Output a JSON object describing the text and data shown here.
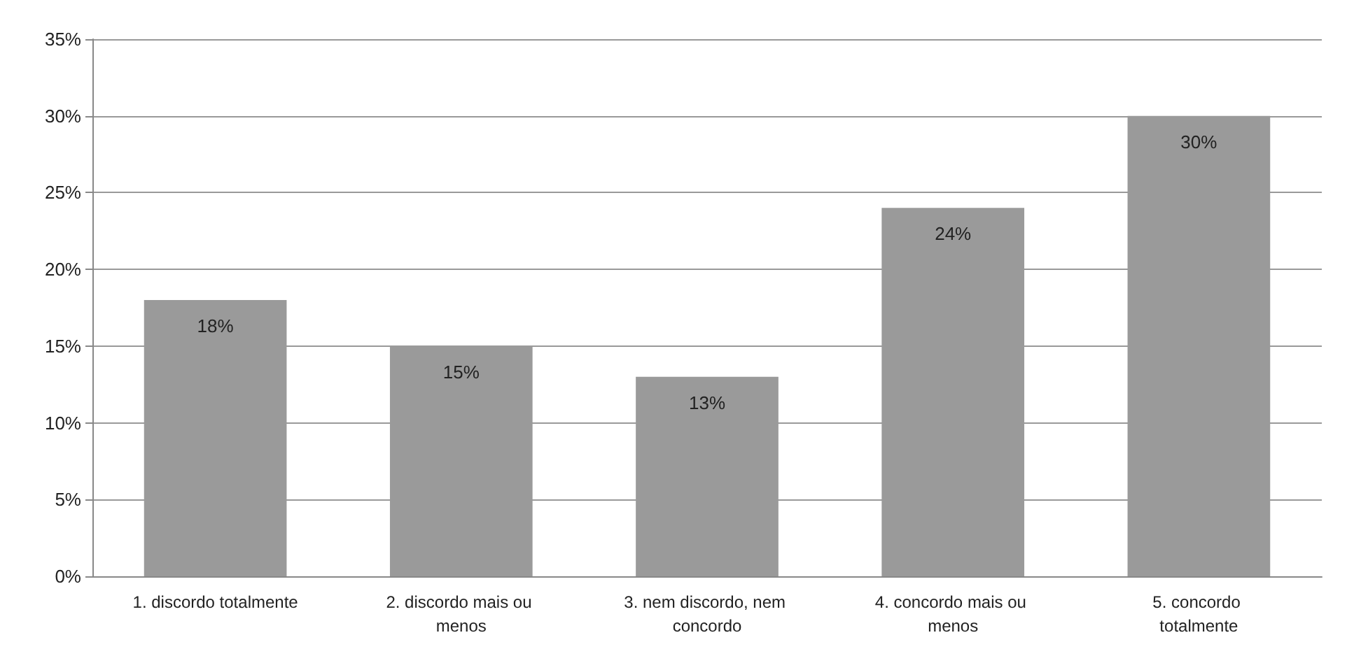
{
  "chart_data": {
    "type": "bar",
    "categories": [
      "1. discordo totalmente",
      "2. discordo mais ou menos",
      "3. nem discordo, nem concordo",
      "4. concordo mais ou menos",
      "5. concordo totalmente"
    ],
    "values": [
      18,
      15,
      13,
      24,
      30
    ],
    "color": "#9a9a9a",
    "value_labels": [
      "18%",
      "15%",
      "13%",
      "24%",
      "30%"
    ],
    "ylim": [
      0,
      35
    ],
    "yticks": [
      {
        "value": 0,
        "label": "0%"
      },
      {
        "value": 5,
        "label": "5%"
      },
      {
        "value": 10,
        "label": "10%"
      },
      {
        "value": 15,
        "label": "15%"
      },
      {
        "value": 20,
        "label": "20%"
      },
      {
        "value": 25,
        "label": "25%"
      },
      {
        "value": 30,
        "label": "30%"
      },
      {
        "value": 35,
        "label": "35%"
      }
    ],
    "grid": "y"
  }
}
